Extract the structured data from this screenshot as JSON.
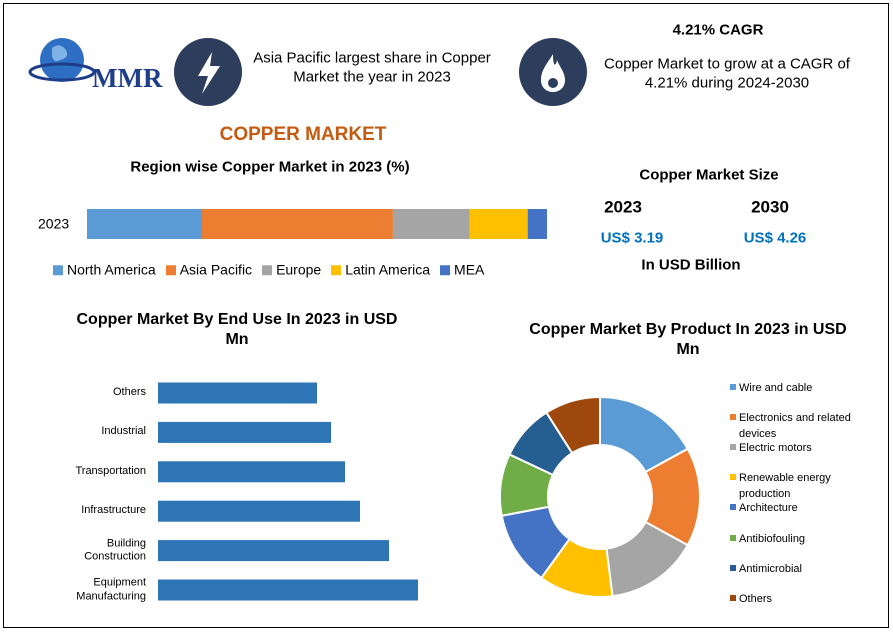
{
  "header": {
    "logo": "MMR",
    "fact": "Asia Pacific largest share in Copper Market the year in 2023",
    "cagr_title": "4.21% CAGR",
    "cagr_text": "Copper Market to grow at a CAGR of 4.21% during 2024-2030"
  },
  "title": "COPPER MARKET",
  "market_size": {
    "title": "Copper Market Size",
    "years": [
      "2023",
      "2030"
    ],
    "values": [
      "US$ 3.19",
      "US$ 4.26"
    ],
    "unit": "In USD Billion"
  },
  "chart_data": [
    {
      "type": "bar",
      "orientation": "horizontal",
      "stacked": true,
      "title": "Region wise Copper Market in 2023 (%)",
      "categories": [
        "2023"
      ],
      "xlim": [
        0,
        100
      ],
      "series": [
        {
          "name": "North America",
          "color": "#5b9bd5",
          "values": [
            25
          ]
        },
        {
          "name": "Asia Pacific",
          "color": "#ed7d31",
          "values": [
            41.5
          ]
        },
        {
          "name": "Europe",
          "color": "#a5a5a5",
          "values": [
            16.7
          ]
        },
        {
          "name": "Latin America",
          "color": "#ffc000",
          "values": [
            12.6
          ]
        },
        {
          "name": "MEA",
          "color": "#4472c4",
          "values": [
            4.2
          ]
        }
      ]
    },
    {
      "type": "bar",
      "orientation": "horizontal",
      "title": "Copper Market By End Use In 2023 in USD Mn",
      "categories": [
        "Others",
        "Industrial",
        "Transportation",
        "Infrastructure",
        "Building Construction",
        "Equipment Manufacturing"
      ],
      "values": [
        1590,
        1730,
        1870,
        2020,
        2310,
        2600
      ],
      "xlim": [
        0,
        4000
      ],
      "color": "#2e75b6"
    },
    {
      "type": "donut",
      "title": "Copper Market By Product In 2023 in USD Mn",
      "categories": [
        "Wire and cable",
        "Electronics and related devices",
        "Electric motors",
        "Renewable energy production",
        "Architecture",
        "Antibiofouling",
        "Antimicrobial",
        "Others"
      ],
      "values": [
        17,
        16,
        15,
        12,
        12,
        10,
        9,
        9
      ],
      "colors": [
        "#5b9bd5",
        "#ed7d31",
        "#a5a5a5",
        "#ffc000",
        "#4472c4",
        "#70ad47",
        "#255e91",
        "#9e480e"
      ]
    }
  ]
}
